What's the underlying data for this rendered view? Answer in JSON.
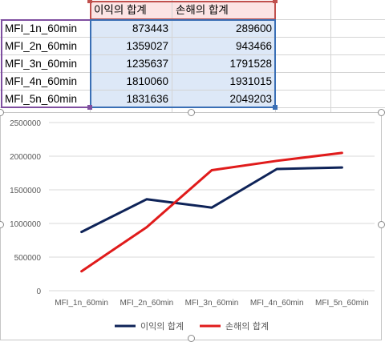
{
  "sheet": {
    "headers": [
      "이익의 합계",
      "손해의 합계"
    ],
    "rows": [
      {
        "label": "MFI_1n_60min",
        "profit": "873443",
        "loss": "289600"
      },
      {
        "label": "MFI_2n_60min",
        "profit": "1359027",
        "loss": "943466"
      },
      {
        "label": "MFI_3n_60min",
        "profit": "1235637",
        "loss": "1791528"
      },
      {
        "label": "MFI_4n_60min",
        "profit": "1810060",
        "loss": "1931015"
      },
      {
        "label": "MFI_5n_60min",
        "profit": "1831636",
        "loss": "2049203"
      }
    ],
    "colors": {
      "row_range": "#7f4fa0",
      "header_range": "#c0504d",
      "value_range": "#3a6fb5"
    }
  },
  "chart_data": {
    "type": "line",
    "categories": [
      "MFI_1n_60min",
      "MFI_2n_60min",
      "MFI_3n_60min",
      "MFI_4n_60min",
      "MFI_5n_60min"
    ],
    "series": [
      {
        "name": "이익의 합계",
        "values": [
          873443,
          1359027,
          1235637,
          1810060,
          1831636
        ],
        "color": "#0e2358"
      },
      {
        "name": "손해의 합계",
        "values": [
          289600,
          943466,
          1791528,
          1931015,
          2049203
        ],
        "color": "#e01b1b"
      }
    ],
    "ylim": [
      0,
      2500000
    ],
    "yticks": [
      "0",
      "500000",
      "1000000",
      "1500000",
      "2000000",
      "2500000"
    ],
    "grid": true,
    "legend_position": "bottom"
  }
}
